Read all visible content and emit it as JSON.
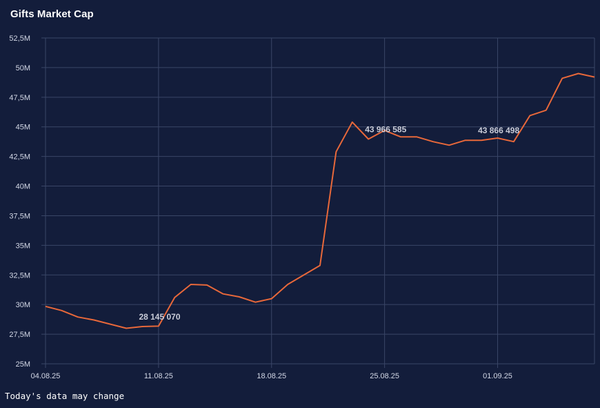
{
  "title": "Gifts Market Cap",
  "footer": "Today's data may change",
  "colors": {
    "background": "#131d3b",
    "grid": "#3a4667",
    "line": "#e8683a",
    "text": "#d3d8e6"
  },
  "chart_data": {
    "type": "line",
    "title": "Gifts Market Cap",
    "xlabel": "",
    "ylabel": "",
    "grid": true,
    "ylim": [
      25000000,
      52500000
    ],
    "y_ticks": [
      {
        "value": 25000000,
        "label": "25M"
      },
      {
        "value": 27500000,
        "label": "27,5M"
      },
      {
        "value": 30000000,
        "label": "30M"
      },
      {
        "value": 32500000,
        "label": "32,5M"
      },
      {
        "value": 35000000,
        "label": "35M"
      },
      {
        "value": 37500000,
        "label": "37,5M"
      },
      {
        "value": 40000000,
        "label": "40M"
      },
      {
        "value": 42500000,
        "label": "42,5M"
      },
      {
        "value": 45000000,
        "label": "45M"
      },
      {
        "value": 47500000,
        "label": "47,5M"
      },
      {
        "value": 50000000,
        "label": "50M"
      },
      {
        "value": 52500000,
        "label": "52,5M"
      }
    ],
    "x_ticks": [
      "04.08.25",
      "11.08.25",
      "18.08.25",
      "25.08.25",
      "01.09.25"
    ],
    "x": [
      "04.08.25",
      "05.08.25",
      "06.08.25",
      "07.08.25",
      "08.08.25",
      "09.08.25",
      "10.08.25",
      "11.08.25",
      "12.08.25",
      "13.08.25",
      "14.08.25",
      "15.08.25",
      "16.08.25",
      "17.08.25",
      "18.08.25",
      "19.08.25",
      "20.08.25",
      "21.08.25",
      "22.08.25",
      "23.08.25",
      "24.08.25",
      "25.08.25",
      "26.08.25",
      "27.08.25",
      "28.08.25",
      "29.08.25",
      "30.08.25",
      "31.08.25",
      "01.09.25",
      "02.09.25",
      "03.09.25",
      "04.09.25",
      "05.09.25",
      "06.09.25",
      "07.09.25"
    ],
    "series": [
      {
        "values": [
          29850000,
          29500000,
          28950000,
          28700000,
          28350000,
          28000000,
          28145070,
          28180000,
          30600000,
          31700000,
          31650000,
          30900000,
          30650000,
          30200000,
          30500000,
          31700000,
          32500000,
          33300000,
          42900000,
          45400000,
          43966585,
          44700000,
          44150000,
          44150000,
          43750000,
          43450000,
          43866498,
          43866498,
          44050000,
          43750000,
          45950000,
          46400000,
          49100000,
          49500000,
          49200000
        ]
      }
    ],
    "annotations": [
      {
        "x": "10.08.25",
        "label": "28 145 070"
      },
      {
        "x": "24.08.25",
        "label": "43 966 585"
      },
      {
        "x": "31.08.25",
        "label": "43 866 498"
      }
    ]
  }
}
